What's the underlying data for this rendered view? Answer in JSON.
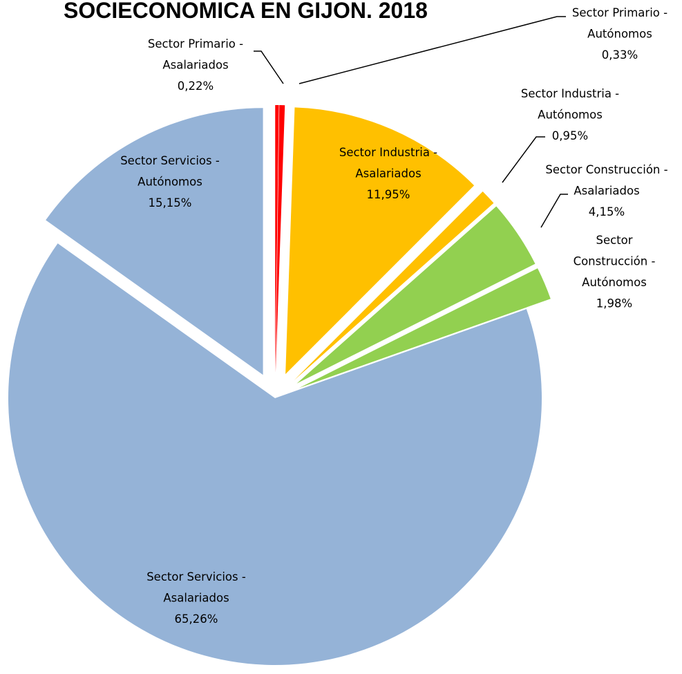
{
  "chart_data": {
    "type": "pie",
    "title": "SOCIECONOMICA EN GIJON. 2018",
    "slices": [
      {
        "name": "Sector Primario - Asalariados",
        "label_lines": [
          "Sector Primario -",
          "Asalariados"
        ],
        "value": 0.22,
        "value_label": "0,22%",
        "color": "#FF0000"
      },
      {
        "name": "Sector Primario - Autónomos",
        "label_lines": [
          "Sector Primario -",
          "Autónomos"
        ],
        "value": 0.33,
        "value_label": "0,33%",
        "color": "#FF0000"
      },
      {
        "name": "Sector Industria - Asalariados",
        "label_lines": [
          "Sector Industria -",
          "Asalariados"
        ],
        "value": 11.95,
        "value_label": "11,95%",
        "color": "#FFC000"
      },
      {
        "name": "Sector Industria - Autónomos",
        "label_lines": [
          "Sector Industria -",
          "Autónomos"
        ],
        "value": 0.95,
        "value_label": "0,95%",
        "color": "#FFC000"
      },
      {
        "name": "Sector Construcción - Asalariados",
        "label_lines": [
          "Sector Construcción -",
          "Asalariados"
        ],
        "value": 4.15,
        "value_label": "4,15%",
        "color": "#92D050"
      },
      {
        "name": "Sector Construcción - Autónomos",
        "label_lines": [
          "Sector",
          "Construcción -",
          "Autónomos"
        ],
        "value": 1.98,
        "value_label": "1,98%",
        "color": "#92D050"
      },
      {
        "name": "Sector Servicios - Asalariados",
        "label_lines": [
          "Sector Servicios -",
          "Asalariados"
        ],
        "value": 65.26,
        "value_label": "65,26%",
        "color": "#95B3D7"
      },
      {
        "name": "Sector Servicios - Autónomos",
        "label_lines": [
          "Sector Servicios -",
          "Autónomos"
        ],
        "value": 15.15,
        "value_label": "15,15%",
        "color": "#95B3D7"
      }
    ],
    "start_angle_deg": 0,
    "direction": "clockwise",
    "exploded": true,
    "legend": "none"
  }
}
